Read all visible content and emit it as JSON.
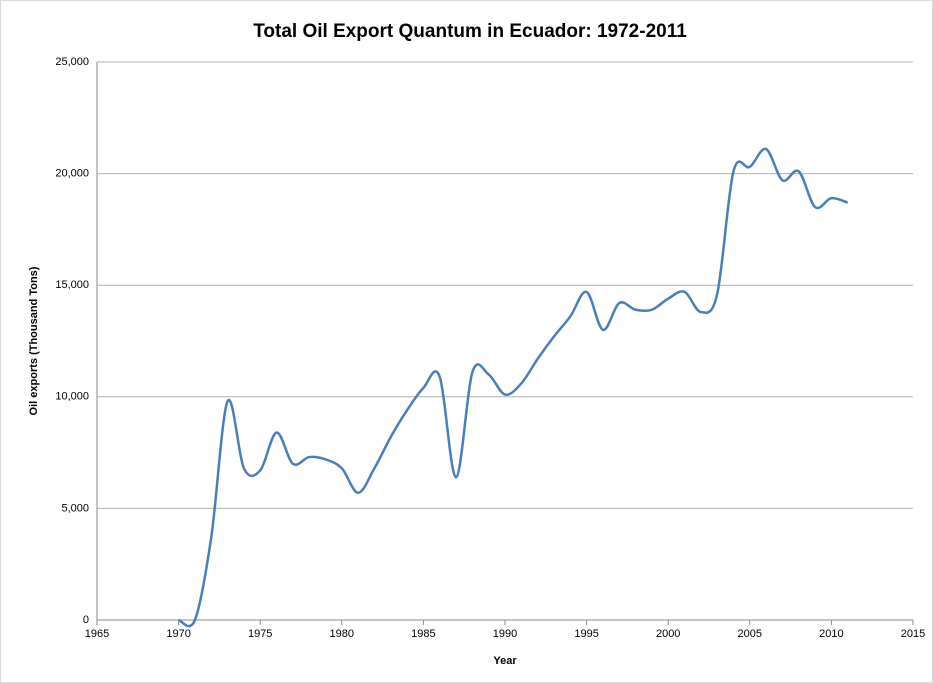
{
  "chart_data": {
    "type": "line",
    "title": "Total Oil Export Quantum in Ecuador: 1972-2011",
    "x_label": "Year",
    "y_label": "Oil exports (Thousand Tons)",
    "x": [
      1970,
      1971,
      1972,
      1973,
      1974,
      1975,
      1976,
      1977,
      1978,
      1979,
      1980,
      1981,
      1982,
      1983,
      1984,
      1985,
      1986,
      1987,
      1988,
      1989,
      1990,
      1991,
      1992,
      1993,
      1994,
      1995,
      1996,
      1997,
      1998,
      1999,
      2000,
      2001,
      2002,
      2003,
      2004,
      2005,
      2006,
      2007,
      2008,
      2009,
      2010,
      2011
    ],
    "series": [
      {
        "name": "Oil exports",
        "color": "#4a7ebb",
        "values": [
          0,
          0,
          3700,
          9800,
          6800,
          6700,
          8400,
          7000,
          7300,
          7200,
          6800,
          5700,
          6800,
          8200,
          9400,
          10400,
          10900,
          6400,
          11100,
          11000,
          10100,
          10600,
          11700,
          12700,
          13600,
          14700,
          13000,
          14200,
          13900,
          13900,
          14400,
          14700,
          13800,
          14600,
          20100,
          20300,
          21100,
          19700,
          20100,
          18500,
          18900,
          18700
        ]
      }
    ],
    "xlim": [
      1965,
      2015
    ],
    "xticks": [
      1965,
      1970,
      1975,
      1980,
      1985,
      1990,
      1995,
      2000,
      2005,
      2010,
      2015
    ],
    "ylim": [
      0,
      25000
    ],
    "yticks": [
      0,
      {
        "value": 5000,
        "label": "5,000"
      },
      {
        "value": 10000,
        "label": "10,000"
      },
      {
        "value": 15000,
        "label": "15,000"
      },
      {
        "value": 20000,
        "label": "20,000"
      },
      {
        "value": 25000,
        "label": "25,000"
      }
    ],
    "grid": true
  }
}
